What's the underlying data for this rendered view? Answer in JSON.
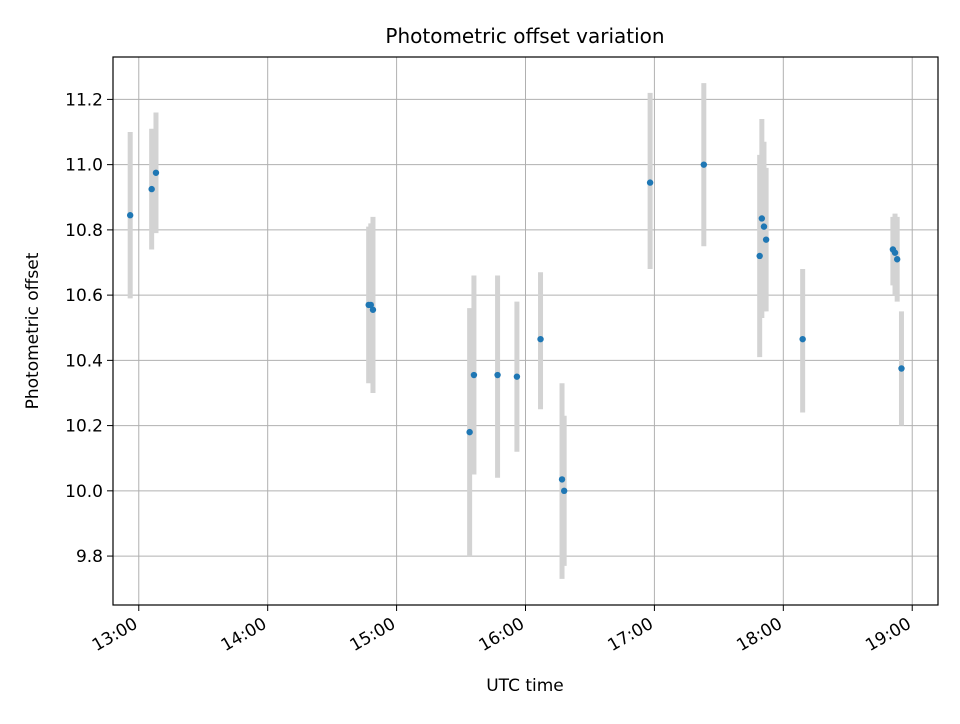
{
  "chart_data": {
    "type": "scatter",
    "title": "Photometric offset variation",
    "xlabel": "UTC time",
    "ylabel": "Photometric offset",
    "xlim": [
      "12:48",
      "19:12"
    ],
    "ylim": [
      9.65,
      11.33
    ],
    "x_ticks": [
      "13:00",
      "14:00",
      "15:00",
      "16:00",
      "17:00",
      "18:00",
      "19:00"
    ],
    "y_ticks": [
      "9.8",
      "10.0",
      "10.2",
      "10.4",
      "10.6",
      "10.8",
      "11.0",
      "11.2"
    ],
    "grid": true,
    "point_color": "#1f77b4",
    "errorbar_color": "#d3d3d3",
    "points": [
      {
        "x": "12:56",
        "y": 10.845,
        "ylow": 10.59,
        "yhigh": 11.1
      },
      {
        "x": "13:06",
        "y": 10.925,
        "ylow": 10.74,
        "yhigh": 11.11
      },
      {
        "x": "13:08",
        "y": 10.975,
        "ylow": 10.79,
        "yhigh": 11.16
      },
      {
        "x": "14:47",
        "y": 10.57,
        "ylow": 10.33,
        "yhigh": 10.81
      },
      {
        "x": "14:48",
        "y": 10.57,
        "ylow": 10.34,
        "yhigh": 10.82
      },
      {
        "x": "14:49",
        "y": 10.555,
        "ylow": 10.3,
        "yhigh": 10.84
      },
      {
        "x": "15:34",
        "y": 10.18,
        "ylow": 9.8,
        "yhigh": 10.56
      },
      {
        "x": "15:36",
        "y": 10.355,
        "ylow": 10.05,
        "yhigh": 10.66
      },
      {
        "x": "15:47",
        "y": 10.355,
        "ylow": 10.04,
        "yhigh": 10.66
      },
      {
        "x": "15:56",
        "y": 10.35,
        "ylow": 10.12,
        "yhigh": 10.58
      },
      {
        "x": "16:07",
        "y": 10.465,
        "ylow": 10.25,
        "yhigh": 10.67
      },
      {
        "x": "16:17",
        "y": 10.035,
        "ylow": 9.73,
        "yhigh": 10.33
      },
      {
        "x": "16:18",
        "y": 10.0,
        "ylow": 9.77,
        "yhigh": 10.23
      },
      {
        "x": "16:58",
        "y": 10.945,
        "ylow": 10.68,
        "yhigh": 11.22
      },
      {
        "x": "17:23",
        "y": 11.0,
        "ylow": 10.75,
        "yhigh": 11.25
      },
      {
        "x": "17:49",
        "y": 10.72,
        "ylow": 10.41,
        "yhigh": 11.03
      },
      {
        "x": "17:50",
        "y": 10.835,
        "ylow": 10.53,
        "yhigh": 11.14
      },
      {
        "x": "17:51",
        "y": 10.81,
        "ylow": 10.55,
        "yhigh": 11.07
      },
      {
        "x": "17:52",
        "y": 10.77,
        "ylow": 10.55,
        "yhigh": 10.99
      },
      {
        "x": "18:09",
        "y": 10.465,
        "ylow": 10.24,
        "yhigh": 10.68
      },
      {
        "x": "18:51",
        "y": 10.74,
        "ylow": 10.63,
        "yhigh": 10.84
      },
      {
        "x": "18:52",
        "y": 10.73,
        "ylow": 10.6,
        "yhigh": 10.85
      },
      {
        "x": "18:53",
        "y": 10.71,
        "ylow": 10.58,
        "yhigh": 10.84
      },
      {
        "x": "18:55",
        "y": 10.375,
        "ylow": 10.2,
        "yhigh": 10.55
      }
    ]
  }
}
